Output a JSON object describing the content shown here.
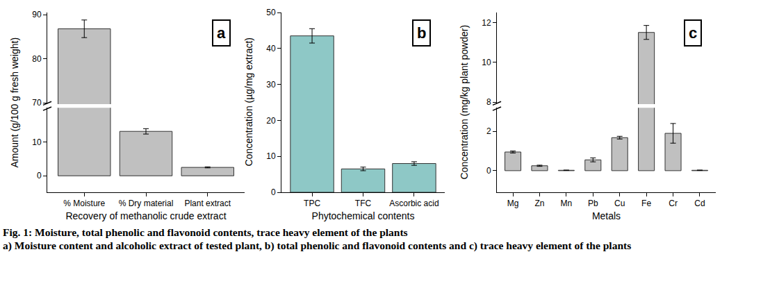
{
  "chart_data": [
    {
      "type": "bar",
      "annotation": "a",
      "x_label": "Recovery of methanolic crude extract",
      "y_label": "Amount (g/100 g fresh weight)",
      "categories": [
        "% Moisture",
        "% Dry material",
        "Plant extract"
      ],
      "values": [
        86.8,
        13.2,
        2.5
      ],
      "error": [
        2.0,
        0.8,
        0.15
      ],
      "color": "#c0c0c0",
      "ylim": [
        -4.9,
        90.5
      ],
      "y_break": [
        20.2,
        69.7
      ],
      "yticks": [
        0,
        10,
        70,
        80,
        90
      ]
    },
    {
      "type": "bar",
      "annotation": "b",
      "x_label": "Phytochemical contents",
      "y_label": "Concentration (µg/mg extract)",
      "categories": [
        "TPC",
        "TFC",
        "Ascorbic acid"
      ],
      "values": [
        43.5,
        6.5,
        8.0
      ],
      "error": [
        2.0,
        0.5,
        0.5
      ],
      "color": "#8ec8c6",
      "ylim": [
        0,
        50
      ],
      "yticks": [
        0,
        10,
        20,
        30,
        40,
        50
      ]
    },
    {
      "type": "bar",
      "annotation": "c",
      "x_label": "Metals",
      "y_label": "Concentration (mg/kg plant powder)",
      "categories": [
        "Mg",
        "Zn",
        "Mn",
        "Pb",
        "Cu",
        "Fe",
        "Cr",
        "Cd"
      ],
      "values": [
        0.95,
        0.25,
        0.02,
        0.55,
        1.68,
        11.5,
        1.9,
        0.02
      ],
      "error": [
        0.05,
        0.03,
        0.01,
        0.1,
        0.07,
        0.35,
        0.5,
        0.01
      ],
      "color": "#c0c0c0",
      "ylim": [
        -1.1,
        12.5
      ],
      "y_break": [
        3.2,
        7.9
      ],
      "yticks": [
        0,
        2,
        8,
        10,
        12
      ]
    }
  ],
  "caption": {
    "title": "Fig. 1: Moisture, total phenolic and flavonoid contents, trace heavy element of the plants",
    "text": "a) Moisture content and alcoholic extract of tested plant, b) total phenolic and flavonoid contents and c) trace heavy element of the plants"
  }
}
